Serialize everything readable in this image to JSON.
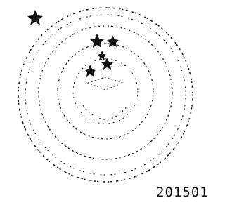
{
  "stamp": {
    "date_text": "201501"
  }
}
